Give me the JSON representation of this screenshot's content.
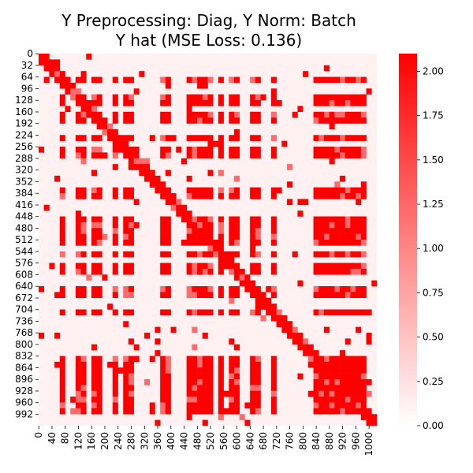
{
  "chart_data": {
    "type": "heatmap",
    "title_lines": [
      "Y Preprocessing: Diag, Y Norm: Batch",
      "Y hat (MSE Loss: 0.136)"
    ],
    "xlabel": "",
    "ylabel": "",
    "n_rows": 1024,
    "n_cols": 1024,
    "x_tick_labels": [
      "0",
      "40",
      "80",
      "120",
      "160",
      "200",
      "240",
      "280",
      "320",
      "360",
      "400",
      "440",
      "480",
      "520",
      "560",
      "600",
      "640",
      "680",
      "720",
      "760",
      "800",
      "840",
      "880",
      "920",
      "960",
      "1000"
    ],
    "y_tick_labels": [
      "0",
      "32",
      "64",
      "96",
      "128",
      "160",
      "192",
      "224",
      "256",
      "288",
      "320",
      "352",
      "384",
      "416",
      "448",
      "480",
      "512",
      "544",
      "576",
      "608",
      "640",
      "672",
      "704",
      "736",
      "768",
      "800",
      "832",
      "864",
      "896",
      "928",
      "960",
      "992"
    ],
    "colorbar": {
      "min": 0.0,
      "max": 2.1,
      "tick_labels": [
        "0.00",
        "0.25",
        "0.50",
        "0.75",
        "1.00",
        "1.25",
        "1.50",
        "1.75",
        "2.00"
      ],
      "colors": [
        "#ffffff",
        "#ff0000"
      ]
    },
    "pattern_note": "Block-structured symmetric matrix: values near 0 (white/pink) with many bands and blocks near 2.1 (red)."
  }
}
